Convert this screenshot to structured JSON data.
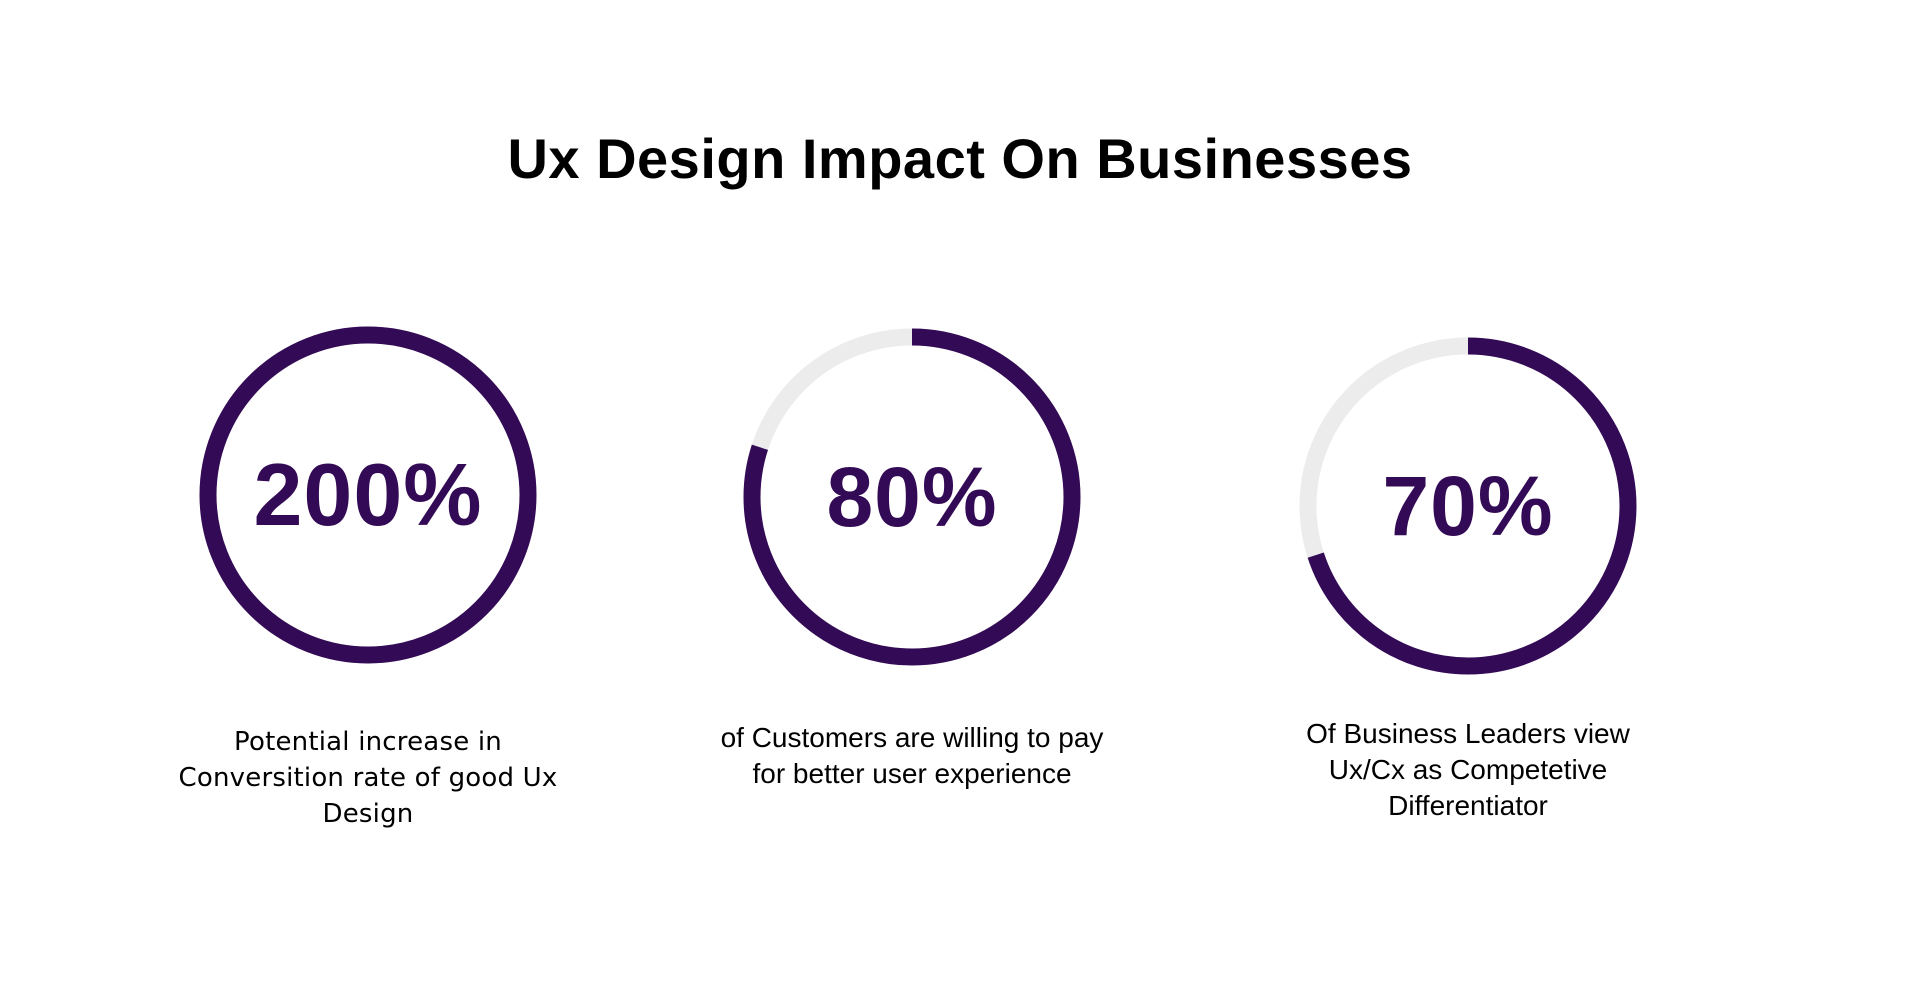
{
  "header": {
    "title": "Ux Design Impact On Businesses"
  },
  "colors": {
    "accent": "#330a55",
    "track": "#ececec",
    "background": "#ffffff",
    "text": "#000000"
  },
  "chart_data": [
    {
      "type": "pie",
      "value_label": "200%",
      "fill_fraction": 1.0,
      "caption": "Potential increase in Conversition rate of good Ux Design"
    },
    {
      "type": "pie",
      "value_label": "80%",
      "fill_fraction": 0.8,
      "caption": "of Customers are willing to pay for better user experience"
    },
    {
      "type": "pie",
      "value_label": "70%",
      "fill_fraction": 0.7,
      "caption": "Of Business Leaders view Ux/Cx as Competetive Differentiator"
    }
  ]
}
